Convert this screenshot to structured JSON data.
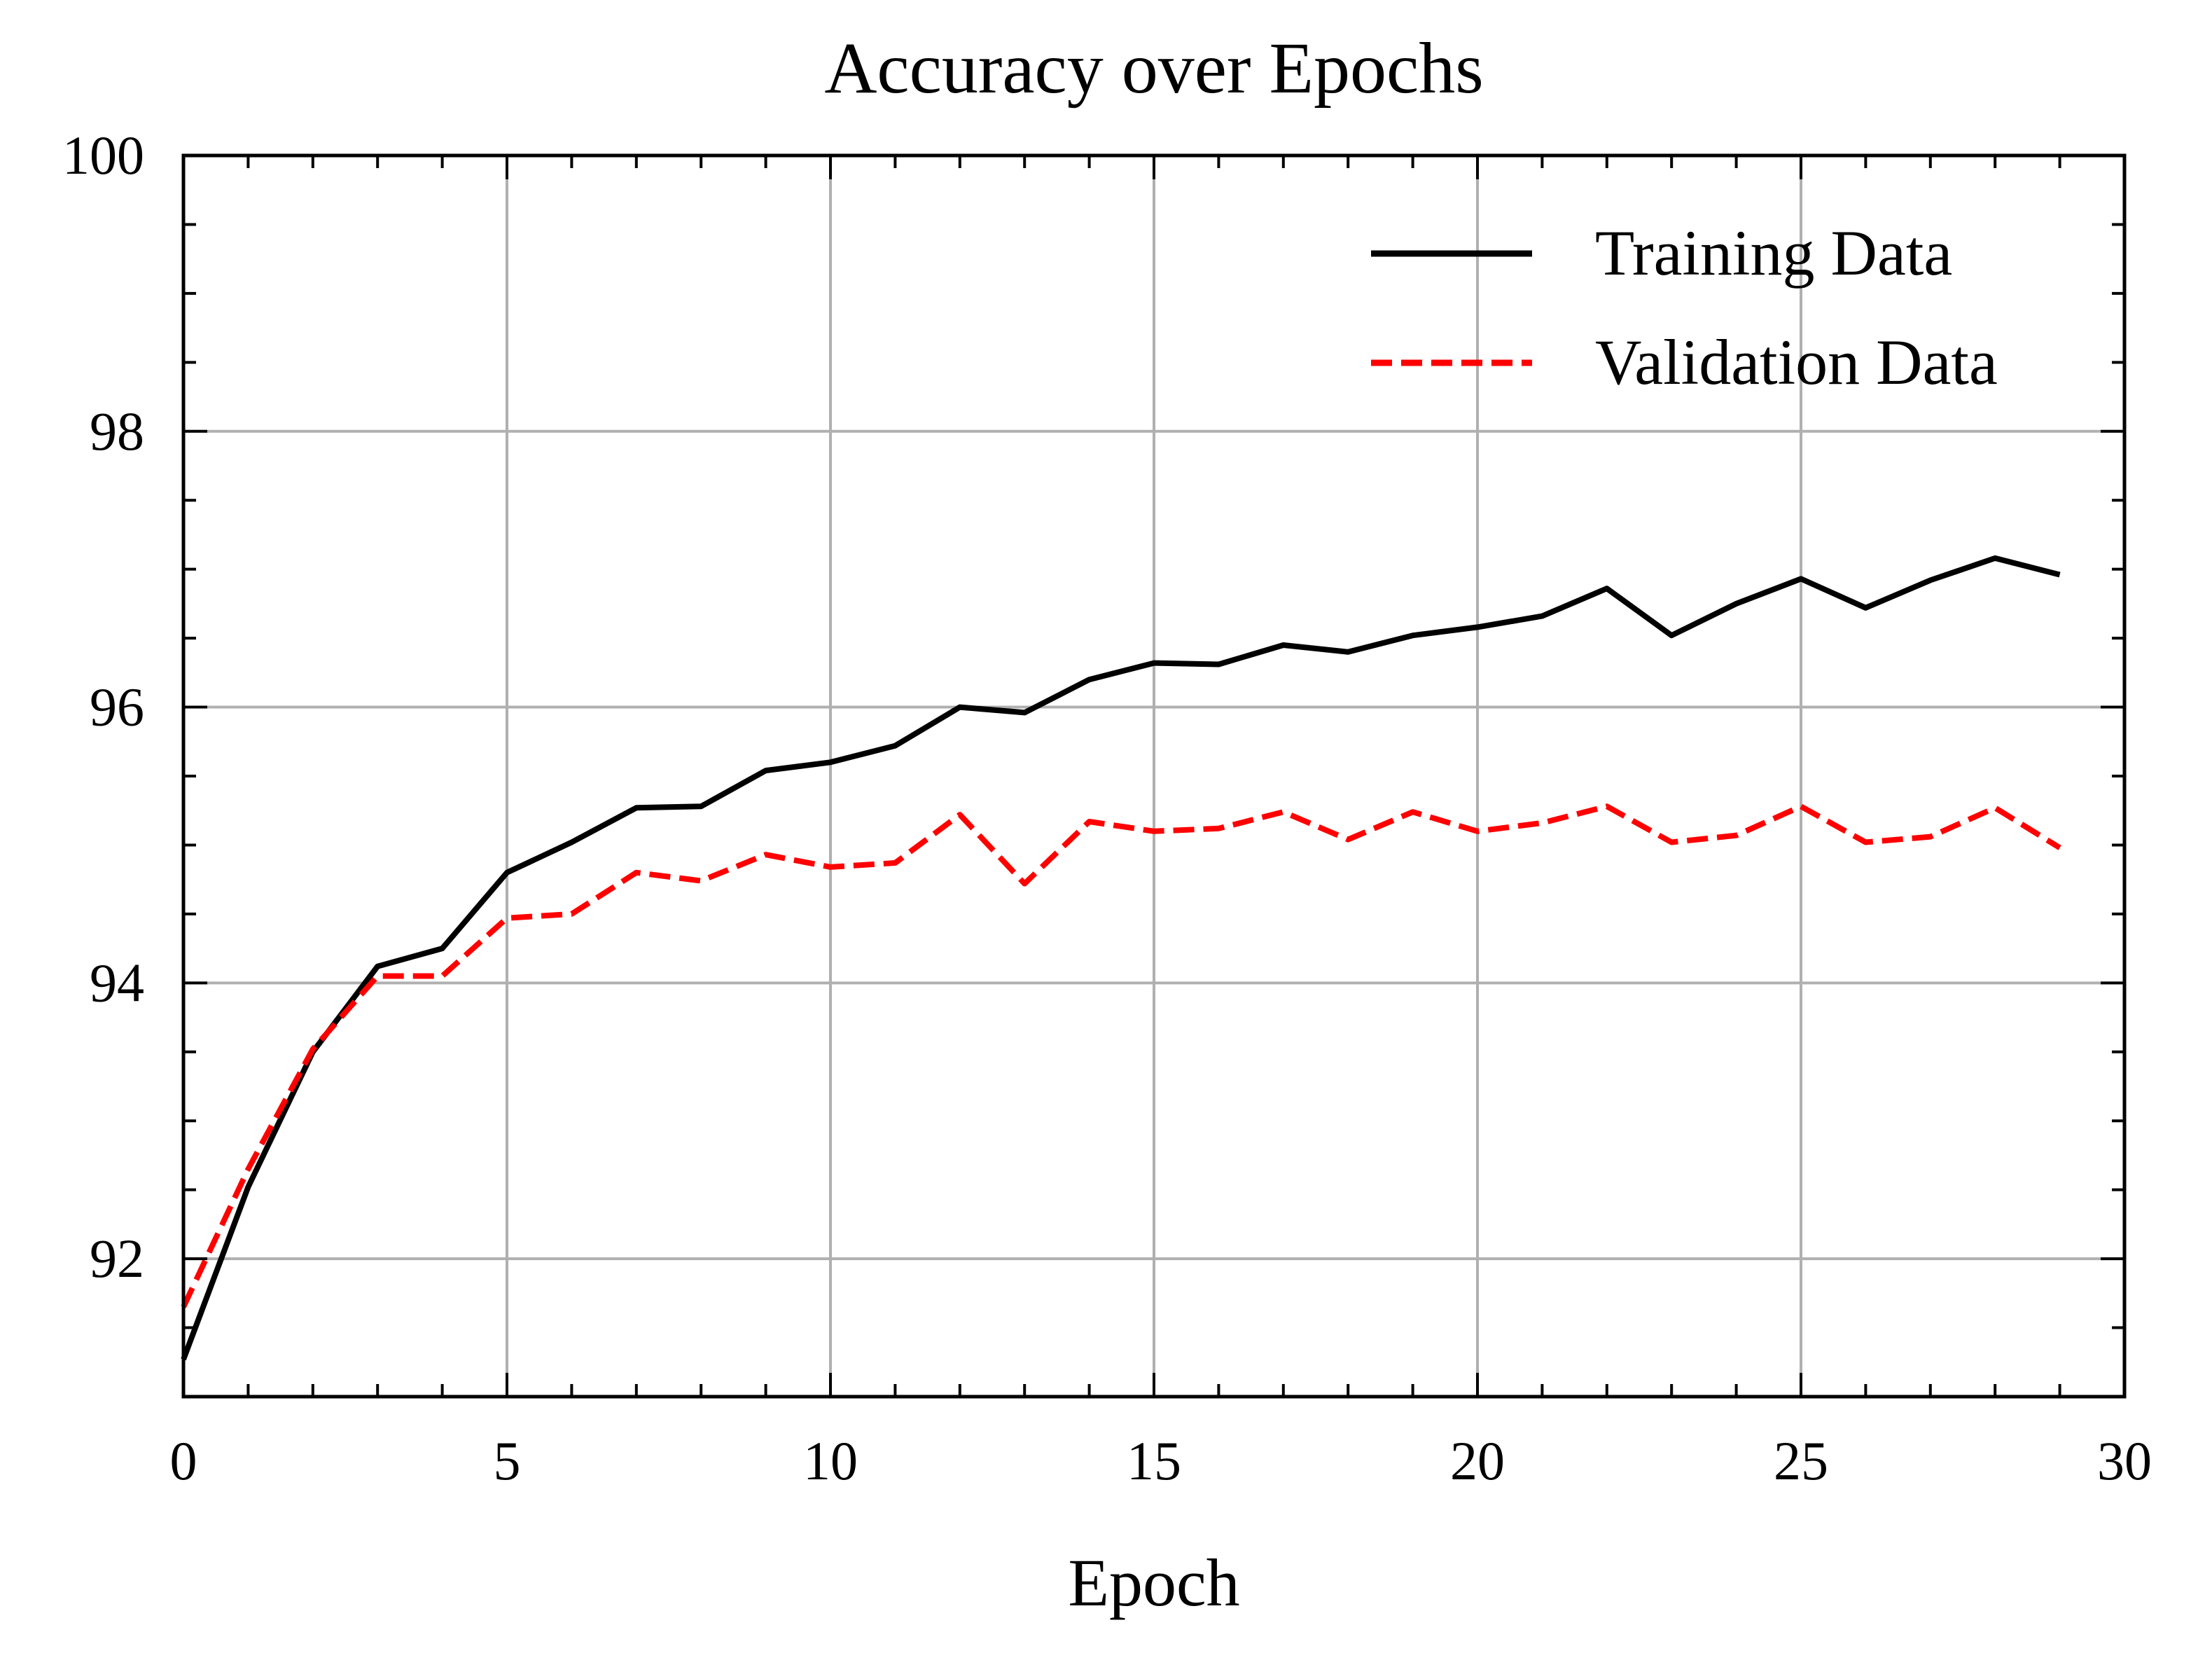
{
  "chart_data": {
    "type": "line",
    "title": "Accuracy over Epochs",
    "xlabel": "Epoch",
    "ylabel": "",
    "xlim": [
      0,
      30
    ],
    "ylim": [
      91,
      100
    ],
    "xticks": [
      0,
      5,
      10,
      15,
      20,
      25,
      30
    ],
    "xtick_labels": [
      "0",
      "5",
      "10",
      "15",
      "20",
      "25",
      "30"
    ],
    "yticks": [
      92,
      94,
      96,
      98,
      100
    ],
    "ytick_labels": [
      "92",
      "94",
      "96",
      "98",
      "100"
    ],
    "grid": true,
    "legend": {
      "placement": "top-right"
    },
    "x": [
      0,
      1,
      2,
      3,
      4,
      5,
      6,
      7,
      8,
      9,
      10,
      11,
      12,
      13,
      14,
      15,
      16,
      17,
      18,
      19,
      20,
      21,
      22,
      23,
      24,
      25,
      26,
      27,
      28,
      29
    ],
    "series": [
      {
        "name": "Training Data",
        "color": "#000000",
        "style": "solid",
        "values": [
          91.27,
          92.52,
          93.5,
          94.12,
          94.25,
          94.8,
          95.02,
          95.27,
          95.28,
          95.54,
          95.6,
          95.72,
          96.0,
          95.96,
          96.2,
          96.32,
          96.31,
          96.45,
          96.4,
          96.52,
          96.58,
          96.66,
          96.86,
          96.52,
          96.75,
          96.93,
          96.72,
          96.92,
          97.08,
          96.96
        ]
      },
      {
        "name": "Validation Data",
        "color": "#ff0000",
        "style": "dashed",
        "values": [
          91.65,
          92.65,
          93.52,
          94.05,
          94.05,
          94.47,
          94.5,
          94.8,
          94.74,
          94.93,
          94.84,
          94.87,
          95.22,
          94.72,
          95.17,
          95.1,
          95.12,
          95.24,
          95.04,
          95.24,
          95.1,
          95.16,
          95.28,
          95.02,
          95.07,
          95.28,
          95.02,
          95.06,
          95.27,
          94.98
        ]
      }
    ]
  }
}
